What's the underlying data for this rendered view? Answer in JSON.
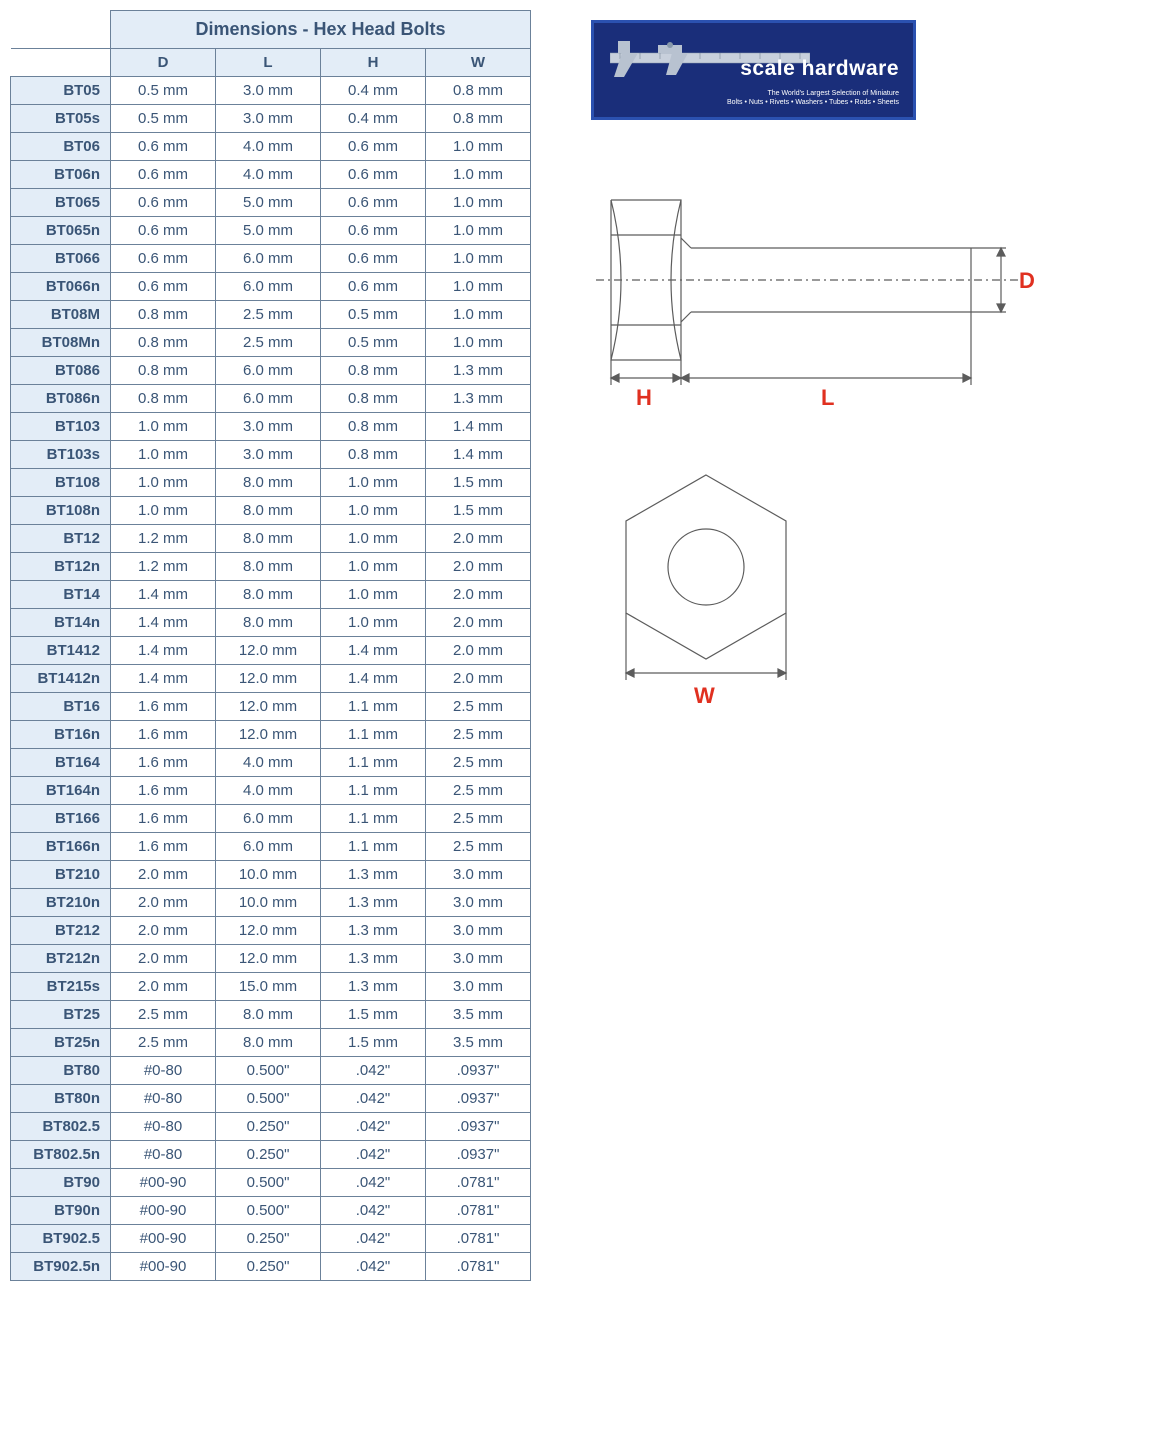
{
  "title": "Dimensions - Hex Head Bolts",
  "columns": [
    "D",
    "L",
    "H",
    "W"
  ],
  "rows": [
    {
      "part": "BT05",
      "d": "0.5 mm",
      "l": "3.0 mm",
      "h": "0.4 mm",
      "w": "0.8 mm"
    },
    {
      "part": "BT05s",
      "d": "0.5 mm",
      "l": "3.0 mm",
      "h": "0.4 mm",
      "w": "0.8 mm"
    },
    {
      "part": "BT06",
      "d": "0.6 mm",
      "l": "4.0 mm",
      "h": "0.6 mm",
      "w": "1.0 mm"
    },
    {
      "part": "BT06n",
      "d": "0.6 mm",
      "l": "4.0 mm",
      "h": "0.6 mm",
      "w": "1.0 mm"
    },
    {
      "part": "BT065",
      "d": "0.6 mm",
      "l": "5.0 mm",
      "h": "0.6 mm",
      "w": "1.0 mm"
    },
    {
      "part": "BT065n",
      "d": "0.6 mm",
      "l": "5.0 mm",
      "h": "0.6 mm",
      "w": "1.0 mm"
    },
    {
      "part": "BT066",
      "d": "0.6 mm",
      "l": "6.0 mm",
      "h": "0.6 mm",
      "w": "1.0 mm"
    },
    {
      "part": "BT066n",
      "d": "0.6 mm",
      "l": "6.0 mm",
      "h": "0.6 mm",
      "w": "1.0 mm"
    },
    {
      "part": "BT08M",
      "d": "0.8 mm",
      "l": "2.5 mm",
      "h": "0.5 mm",
      "w": "1.0 mm"
    },
    {
      "part": "BT08Mn",
      "d": "0.8 mm",
      "l": "2.5 mm",
      "h": "0.5 mm",
      "w": "1.0 mm"
    },
    {
      "part": "BT086",
      "d": "0.8 mm",
      "l": "6.0 mm",
      "h": "0.8 mm",
      "w": "1.3 mm"
    },
    {
      "part": "BT086n",
      "d": "0.8 mm",
      "l": "6.0 mm",
      "h": "0.8 mm",
      "w": "1.3 mm"
    },
    {
      "part": "BT103",
      "d": "1.0 mm",
      "l": "3.0 mm",
      "h": "0.8 mm",
      "w": "1.4 mm"
    },
    {
      "part": "BT103s",
      "d": "1.0 mm",
      "l": "3.0 mm",
      "h": "0.8 mm",
      "w": "1.4 mm"
    },
    {
      "part": "BT108",
      "d": "1.0 mm",
      "l": "8.0 mm",
      "h": "1.0 mm",
      "w": "1.5 mm"
    },
    {
      "part": "BT108n",
      "d": "1.0 mm",
      "l": "8.0 mm",
      "h": "1.0 mm",
      "w": "1.5 mm"
    },
    {
      "part": "BT12",
      "d": "1.2 mm",
      "l": "8.0 mm",
      "h": "1.0 mm",
      "w": "2.0 mm"
    },
    {
      "part": "BT12n",
      "d": "1.2 mm",
      "l": "8.0 mm",
      "h": "1.0 mm",
      "w": "2.0 mm"
    },
    {
      "part": "BT14",
      "d": "1.4 mm",
      "l": "8.0 mm",
      "h": "1.0 mm",
      "w": "2.0 mm"
    },
    {
      "part": "BT14n",
      "d": "1.4 mm",
      "l": "8.0 mm",
      "h": "1.0 mm",
      "w": "2.0 mm"
    },
    {
      "part": "BT1412",
      "d": "1.4 mm",
      "l": "12.0 mm",
      "h": "1.4 mm",
      "w": "2.0 mm"
    },
    {
      "part": "BT1412n",
      "d": "1.4 mm",
      "l": "12.0 mm",
      "h": "1.4 mm",
      "w": "2.0 mm"
    },
    {
      "part": "BT16",
      "d": "1.6 mm",
      "l": "12.0 mm",
      "h": "1.1 mm",
      "w": "2.5 mm"
    },
    {
      "part": "BT16n",
      "d": "1.6 mm",
      "l": "12.0 mm",
      "h": "1.1 mm",
      "w": "2.5 mm"
    },
    {
      "part": "BT164",
      "d": "1.6 mm",
      "l": "4.0 mm",
      "h": "1.1 mm",
      "w": "2.5 mm"
    },
    {
      "part": "BT164n",
      "d": "1.6 mm",
      "l": "4.0 mm",
      "h": "1.1 mm",
      "w": "2.5 mm"
    },
    {
      "part": "BT166",
      "d": "1.6 mm",
      "l": "6.0 mm",
      "h": "1.1 mm",
      "w": "2.5 mm"
    },
    {
      "part": "BT166n",
      "d": "1.6 mm",
      "l": "6.0 mm",
      "h": "1.1 mm",
      "w": "2.5 mm"
    },
    {
      "part": "BT210",
      "d": "2.0 mm",
      "l": "10.0 mm",
      "h": "1.3 mm",
      "w": "3.0 mm"
    },
    {
      "part": "BT210n",
      "d": "2.0 mm",
      "l": "10.0 mm",
      "h": "1.3 mm",
      "w": "3.0 mm"
    },
    {
      "part": "BT212",
      "d": "2.0 mm",
      "l": "12.0 mm",
      "h": "1.3 mm",
      "w": "3.0 mm"
    },
    {
      "part": "BT212n",
      "d": "2.0 mm",
      "l": "12.0 mm",
      "h": "1.3 mm",
      "w": "3.0 mm"
    },
    {
      "part": "BT215s",
      "d": "2.0 mm",
      "l": "15.0 mm",
      "h": "1.3 mm",
      "w": "3.0 mm"
    },
    {
      "part": "BT25",
      "d": "2.5 mm",
      "l": "8.0 mm",
      "h": "1.5 mm",
      "w": "3.5 mm"
    },
    {
      "part": "BT25n",
      "d": "2.5 mm",
      "l": "8.0 mm",
      "h": "1.5 mm",
      "w": "3.5 mm"
    },
    {
      "part": "BT80",
      "d": "#0-80",
      "l": "0.500\"",
      "h": ".042\"",
      "w": ".0937\""
    },
    {
      "part": "BT80n",
      "d": "#0-80",
      "l": "0.500\"",
      "h": ".042\"",
      "w": ".0937\""
    },
    {
      "part": "BT802.5",
      "d": "#0-80",
      "l": "0.250\"",
      "h": ".042\"",
      "w": ".0937\""
    },
    {
      "part": "BT802.5n",
      "d": "#0-80",
      "l": "0.250\"",
      "h": ".042\"",
      "w": ".0937\""
    },
    {
      "part": "BT90",
      "d": "#00-90",
      "l": "0.500\"",
      "h": ".042\"",
      "w": ".0781\""
    },
    {
      "part": "BT90n",
      "d": "#00-90",
      "l": "0.500\"",
      "h": ".042\"",
      "w": ".0781\""
    },
    {
      "part": "BT902.5",
      "d": "#00-90",
      "l": "0.250\"",
      "h": ".042\"",
      "w": ".0781\""
    },
    {
      "part": "BT902.5n",
      "d": "#00-90",
      "l": "0.250\"",
      "h": ".042\"",
      "w": ".0781\""
    }
  ],
  "logo": {
    "brand": "scale hardware",
    "tagline1": "The World's Largest Selection of Miniature",
    "tagline2": "Bolts • Nuts • Rivets • Washers • Tubes • Rods • Sheets"
  },
  "diagram": {
    "labels": {
      "d": "D",
      "l": "L",
      "h": "H",
      "w": "W"
    },
    "label_color": "#e03020",
    "stroke": "#5c5c5c",
    "stroke_width": 1.2
  },
  "colors": {
    "header_bg": "#e3edf7",
    "header_text": "#3a5576",
    "border": "#6b8199",
    "logo_bg": "#1a2e7a",
    "logo_border": "#2b51b0"
  }
}
